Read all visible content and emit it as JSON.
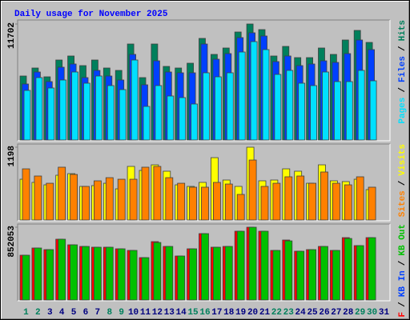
{
  "chart_data": [
    {
      "type": "bar",
      "title": "Daily usage for November 2025",
      "title_color": "#0000ff",
      "ylim": [
        0,
        11702
      ],
      "yticks": [
        11702
      ],
      "separator": "/",
      "series": [
        {
          "name": "Hits",
          "color": "#00805c",
          "values": [
            6456,
            7263,
            6375,
            8070,
            8474,
            7505,
            8070,
            7263,
            7021,
            9684,
            6295,
            9684,
            7424,
            7263,
            7747,
            10249,
            8635,
            9281,
            10895,
            11702,
            11137,
            8474,
            9442,
            8312,
            8312,
            9281,
            8635,
            10088,
            11056,
            9845,
            null
          ]
        },
        {
          "name": "Files",
          "color": "#0040ff",
          "values": [
            5649,
            6860,
            5891,
            7344,
            7667,
            6295,
            7021,
            6456,
            6053,
            8635,
            5568,
            7989,
            6860,
            6779,
            6779,
            9684,
            8151,
            8716,
            10330,
            10814,
            10491,
            7909,
            8474,
            7505,
            7667,
            7989,
            7828,
            8716,
            10088,
            9119,
            null
          ]
        },
        {
          "name": "Pages",
          "color": "#00e0ff",
          "values": [
            5003,
            6295,
            5246,
            6053,
            6860,
            5730,
            6456,
            5488,
            5084,
            8070,
            3389,
            5488,
            4439,
            4277,
            3632,
            6779,
            6375,
            6779,
            8877,
            9926,
            9119,
            6617,
            7021,
            5730,
            5488,
            6860,
            5891,
            5891,
            7021,
            5972,
            null
          ]
        }
      ]
    },
    {
      "type": "bar",
      "ylim": [
        0,
        1198
      ],
      "yticks": [
        1198
      ],
      "separator": "/",
      "series": [
        {
          "name": "Visits",
          "color": "#ffff00",
          "values": [
            671,
            619,
            579,
            737,
            763,
            553,
            566,
            605,
            513,
            882,
            816,
            908,
            803,
            579,
            553,
            619,
            1026,
            658,
            553,
            1198,
            645,
            658,
            842,
            803,
            605,
            908,
            645,
            632,
            671,
            500,
            null
          ]
        },
        {
          "name": "Sites",
          "color": "#ff8000",
          "values": [
            842,
            724,
            605,
            869,
            750,
            553,
            645,
            697,
            671,
            671,
            869,
            882,
            697,
            605,
            540,
            540,
            619,
            592,
            421,
            987,
            553,
            605,
            711,
            724,
            605,
            790,
            605,
            579,
            711,
            540,
            null
          ]
        }
      ]
    },
    {
      "type": "bar",
      "ylim": [
        0,
        852053
      ],
      "yticks": [
        852053
      ],
      "separator": "/",
      "categories": [
        "1",
        "2",
        "3",
        "4",
        "5",
        "6",
        "7",
        "8",
        "9",
        "10",
        "11",
        "12",
        "13",
        "14",
        "15",
        "16",
        "17",
        "18",
        "19",
        "20",
        "21",
        "22",
        "23",
        "24",
        "25",
        "26",
        "27",
        "28",
        "29",
        "30",
        "31"
      ],
      "category_colors": [
        "#00805c",
        "#00805c",
        "#000080",
        "#000080",
        "#000080",
        "#000080",
        "#000080",
        "#00805c",
        "#00805c",
        "#000080",
        "#000080",
        "#000080",
        "#000080",
        "#000080",
        "#00805c",
        "#00805c",
        "#000080",
        "#000080",
        "#000080",
        "#000080",
        "#000080",
        "#00805c",
        "#00805c",
        "#000080",
        "#000080",
        "#000080",
        "#000080",
        "#000080",
        "#00805c",
        "#00805c",
        "#000080"
      ],
      "series": [
        {
          "name": "KB F",
          "color": "#ff0000",
          "values": [
            524328,
            608595,
            589869,
            711588,
            646047,
            627321,
            617958,
            617958,
            599232,
            580506,
            496239,
            683499,
            627321,
            514965,
            599232,
            777129,
            617958,
            627321,
            805218,
            852053,
            805218,
            580506,
            702225,
            571143,
            589869,
            627321,
            580506,
            730314,
            636684,
            730314,
            null
          ]
        },
        {
          "name": "KB In",
          "color": "#0040ff",
          "values": [
            null,
            null,
            null,
            null,
            null,
            null,
            null,
            null,
            null,
            null,
            null,
            null,
            null,
            null,
            null,
            null,
            null,
            null,
            null,
            null,
            null,
            null,
            null,
            null,
            null,
            null,
            null,
            null,
            null,
            null,
            null
          ]
        },
        {
          "name": "KB Out",
          "color": "#00c000",
          "values": [
            524328,
            608595,
            589869,
            711588,
            646047,
            627321,
            617958,
            617958,
            599232,
            580506,
            496239,
            673499,
            627321,
            514965,
            599232,
            777129,
            617958,
            627321,
            805218,
            852053,
            805218,
            580506,
            692225,
            571143,
            589869,
            627321,
            580506,
            720314,
            636684,
            730314,
            null
          ]
        }
      ]
    }
  ]
}
